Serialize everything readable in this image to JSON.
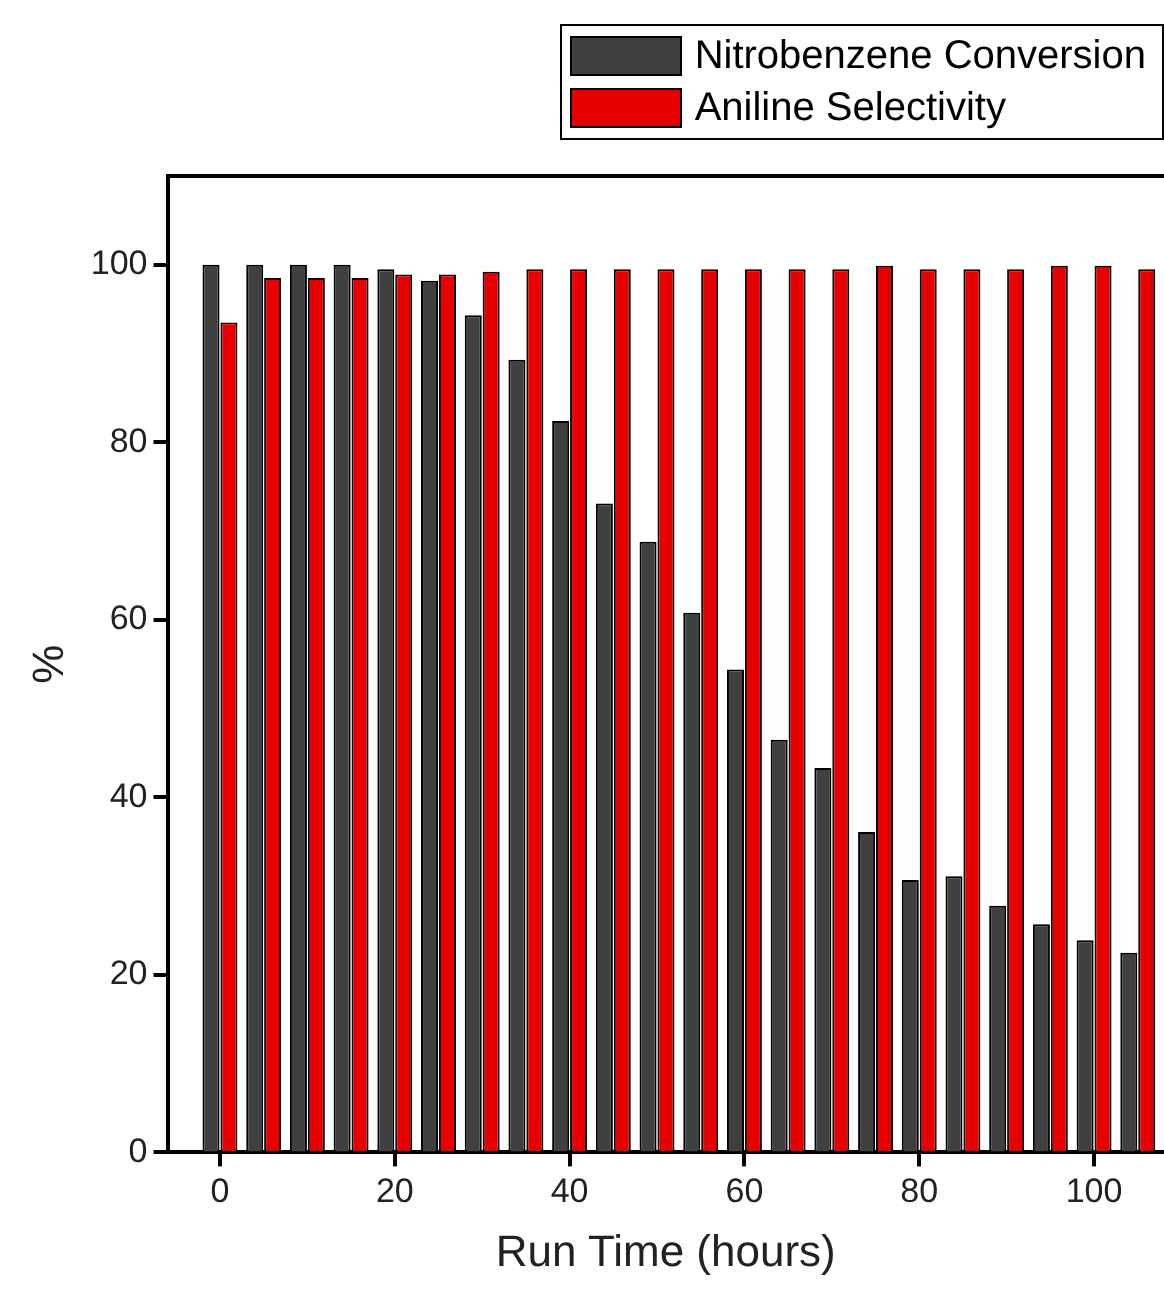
{
  "chart_data": {
    "type": "bar",
    "xlabel": "Run Time (hours)",
    "ylabel": "%",
    "x": [
      0,
      5,
      10,
      15,
      20,
      25,
      30,
      35,
      40,
      45,
      50,
      55,
      60,
      65,
      70,
      75,
      80,
      85,
      90,
      95,
      100,
      105
    ],
    "series": [
      {
        "name": "Nitrobenzene Conversion",
        "color": "#404040",
        "values": [
          100,
          100,
          100,
          100,
          99.5,
          98.2,
          94.3,
          89.3,
          82.4,
          73.1,
          68.8,
          60.8,
          54.4,
          46.5,
          43.3,
          36.1,
          30.7,
          31.1,
          27.8,
          25.7,
          23.9,
          22.5
        ]
      },
      {
        "name": "Aniline Selectivity",
        "color": "#e80000",
        "values": [
          93.5,
          98.5,
          98.5,
          98.5,
          98.9,
          98.9,
          99.2,
          99.5,
          99.5,
          99.5,
          99.5,
          99.5,
          99.5,
          99.5,
          99.5,
          99.9,
          99.5,
          99.5,
          99.5,
          99.9,
          99.9,
          99.5
        ]
      }
    ],
    "xlim": [
      -6,
      108
    ],
    "xticks": [
      0,
      20,
      40,
      60,
      80,
      100
    ],
    "ylim": [
      0,
      110
    ],
    "yticks": [
      0,
      20,
      40,
      60,
      80,
      100
    ],
    "grid": false,
    "legend": "top right"
  }
}
